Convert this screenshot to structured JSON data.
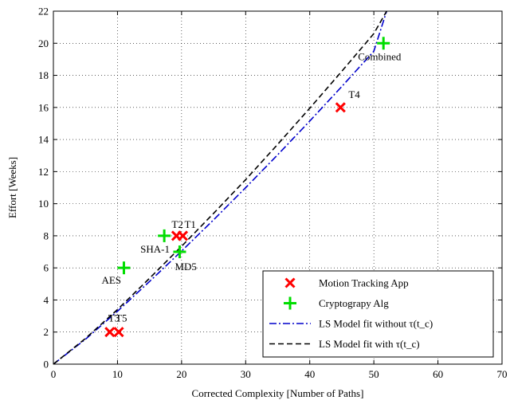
{
  "chart_data": {
    "type": "scatter",
    "title": "",
    "xlabel": "Corrected Complexity [Number of Paths]",
    "ylabel": "Effort [Weeks]",
    "xlim": [
      0,
      70
    ],
    "ylim": [
      0,
      22
    ],
    "xticks": [
      0,
      10,
      20,
      30,
      40,
      50,
      60,
      70
    ],
    "yticks": [
      0,
      2,
      4,
      6,
      8,
      10,
      12,
      14,
      16,
      18,
      20,
      22
    ],
    "grid": true,
    "legend_position": "bottom-right",
    "series": [
      {
        "name": "Motion Tracking App",
        "marker": "x",
        "color": "#ff0000",
        "points": [
          {
            "label": "T1",
            "x": 20.2,
            "y": 8
          },
          {
            "label": "T2",
            "x": 19.2,
            "y": 8
          },
          {
            "label": "T3",
            "x": 8.8,
            "y": 2
          },
          {
            "label": "T4",
            "x": 44.8,
            "y": 16
          },
          {
            "label": "T5",
            "x": 10.2,
            "y": 2
          }
        ]
      },
      {
        "name": "Cryptograpy Alg",
        "marker": "+",
        "color": "#00dd00",
        "points": [
          {
            "label": "AES",
            "x": 11.0,
            "y": 6
          },
          {
            "label": "SHA-1",
            "x": 17.3,
            "y": 8
          },
          {
            "label": "MD5",
            "x": 19.7,
            "y": 7
          },
          {
            "label": "Combined",
            "x": 51.5,
            "y": 20
          }
        ]
      },
      {
        "name": "LS Model fit without τ(t_c)",
        "line_style": "dashdot",
        "color": "#0000cc",
        "x": [
          0,
          5,
          10,
          15,
          20,
          25,
          30,
          35,
          40,
          45,
          50,
          52
        ],
        "y": [
          0,
          1.55,
          3.3,
          5.15,
          7.05,
          9.0,
          11.0,
          13.05,
          15.15,
          17.3,
          19.5,
          22.0
        ]
      },
      {
        "name": "LS Model fit with τ(t_c)",
        "line_style": "dashed",
        "color": "#000000",
        "x": [
          0,
          5,
          10,
          15,
          20,
          25,
          30,
          35,
          40,
          45,
          50,
          52
        ],
        "y": [
          0,
          1.6,
          3.4,
          5.35,
          7.35,
          9.4,
          11.5,
          13.7,
          15.95,
          18.25,
          20.6,
          22.0
        ]
      }
    ],
    "legend": [
      "Motion Tracking App",
      "Cryptograpy Alg",
      "LS Model fit without τ(t_c)",
      "LS Model fit with τ(t_c)"
    ]
  }
}
